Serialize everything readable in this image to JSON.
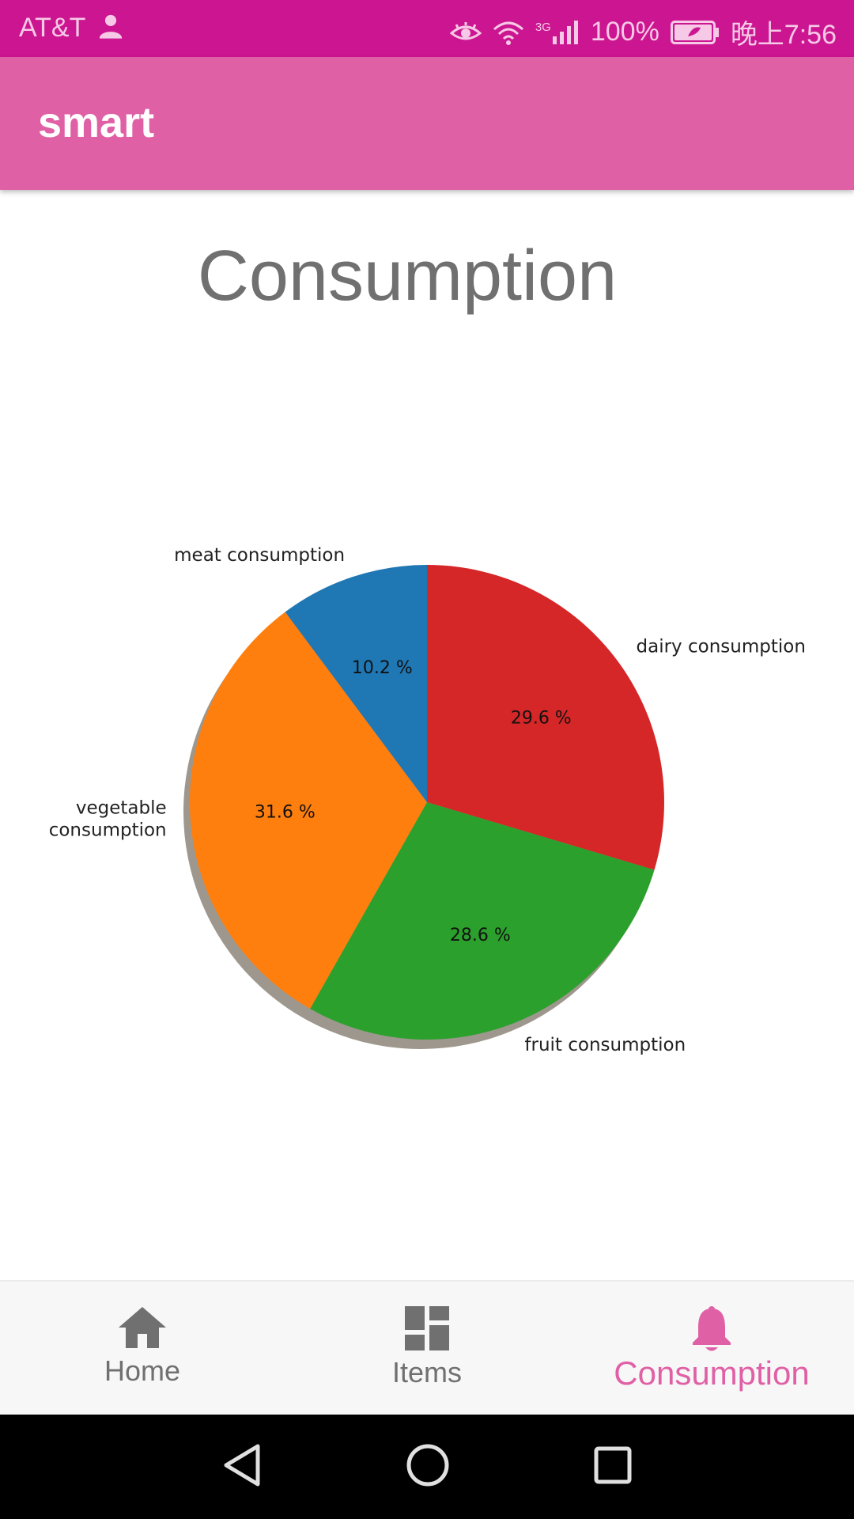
{
  "status_bar": {
    "carrier": "AT&T",
    "battery": "100%",
    "network": "3G",
    "time": "晚上7:56"
  },
  "app_bar": {
    "title": "smart"
  },
  "page": {
    "title": "Consumption"
  },
  "chart_data": {
    "type": "pie",
    "title": "",
    "shadow": true,
    "slices": [
      {
        "label": "dairy consumption",
        "value": 29.6,
        "pct_label": "29.6 %",
        "color": "#d62728"
      },
      {
        "label": "fruit consumption",
        "value": 28.6,
        "pct_label": "28.6 %",
        "color": "#2ca02c"
      },
      {
        "label": "vegetable consumption",
        "value": 31.6,
        "pct_label": "31.6 %",
        "color": "#ff7f0e"
      },
      {
        "label": "meat consumption",
        "value": 10.2,
        "pct_label": "10.2 %",
        "color": "#1f77b4"
      }
    ],
    "start_angle_deg": 90,
    "direction": "clockwise"
  },
  "bottom_nav": {
    "items": [
      {
        "label": "Home",
        "icon": "home-icon"
      },
      {
        "label": "Items",
        "icon": "dashboard-icon"
      },
      {
        "label": "Consumption",
        "icon": "bell-icon",
        "active": true
      }
    ],
    "active_color": "#e060a6",
    "inactive_color": "#707070"
  },
  "system_nav": {
    "buttons": [
      "back-icon",
      "home-circle-icon",
      "recents-icon"
    ]
  }
}
